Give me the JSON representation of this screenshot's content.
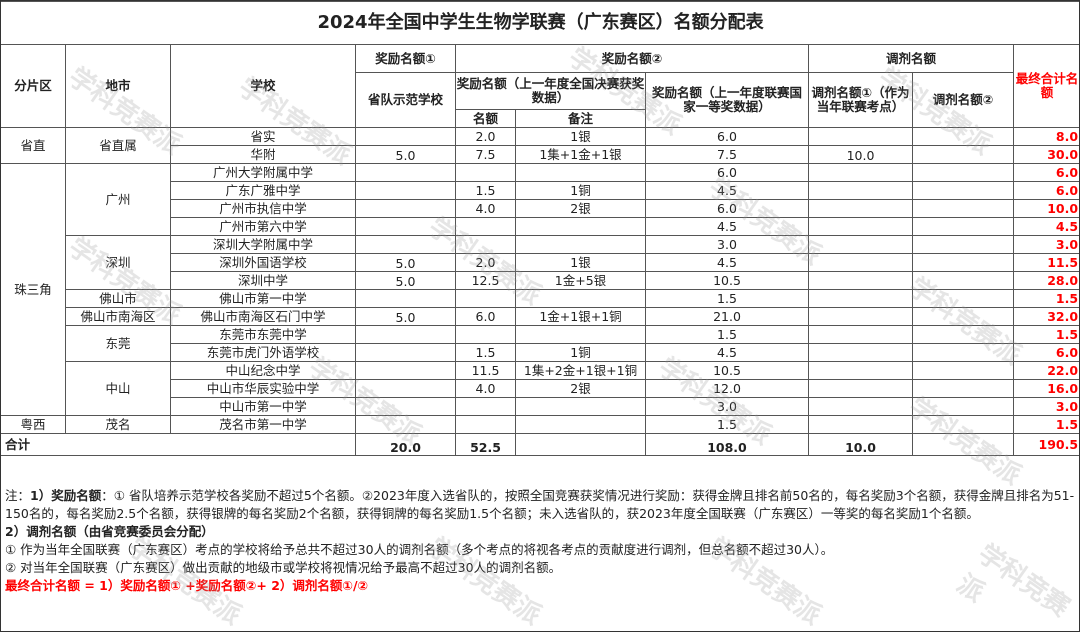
{
  "title": "2024年全国中学生生物学联赛（广东赛区）名额分配表",
  "headers": {
    "region": "分片区",
    "city": "地市",
    "school": "学校",
    "award1": "奖励名额①",
    "award1_sub": "省队示范学校",
    "award2": "奖励名额②",
    "award2_national": "奖励名额（上一年度全国决赛获奖数据）",
    "award2_count": "名额",
    "award2_note": "备注",
    "award2_league": "奖励名额（上一年度联赛国家一等奖数据）",
    "adjust": "调剂名额",
    "adjust1": "调剂名额①（作为当年联赛考点）",
    "adjust2": "调剂名额②",
    "final": "最终合计名额"
  },
  "rows": [
    {
      "region": "省直",
      "region_span": 2,
      "city": "省直属",
      "city_span": 2,
      "school": "省实",
      "award1": "",
      "count": "2.0",
      "note": "1银",
      "league": "6.0",
      "adj1": "",
      "adj2": "",
      "final": "8.0"
    },
    {
      "school": "华附",
      "award1": "5.0",
      "count": "7.5",
      "note": "1集+1金+1银",
      "league": "7.5",
      "adj1": "10.0",
      "adj2": "",
      "final": "30.0"
    },
    {
      "region": "珠三角",
      "region_span": 14,
      "city": "广州",
      "city_span": 4,
      "school": "广州大学附属中学",
      "award1": "",
      "count": "",
      "note": "",
      "league": "6.0",
      "adj1": "",
      "adj2": "",
      "final": "6.0"
    },
    {
      "school": "广东广雅中学",
      "award1": "",
      "count": "1.5",
      "note": "1铜",
      "league": "4.5",
      "adj1": "",
      "adj2": "",
      "final": "6.0"
    },
    {
      "school": "广州市执信中学",
      "award1": "",
      "count": "4.0",
      "note": "2银",
      "league": "6.0",
      "adj1": "",
      "adj2": "",
      "final": "10.0"
    },
    {
      "school": "广州市第六中学",
      "award1": "",
      "count": "",
      "note": "",
      "league": "4.5",
      "adj1": "",
      "adj2": "",
      "final": "4.5"
    },
    {
      "city": "深圳",
      "city_span": 3,
      "school": "深圳大学附属中学",
      "award1": "",
      "count": "",
      "note": "",
      "league": "3.0",
      "adj1": "",
      "adj2": "",
      "final": "3.0"
    },
    {
      "school": "深圳外国语学校",
      "award1": "5.0",
      "count": "2.0",
      "note": "1银",
      "league": "4.5",
      "adj1": "",
      "adj2": "",
      "final": "11.5"
    },
    {
      "school": "深圳中学",
      "award1": "5.0",
      "count": "12.5",
      "note": "1金+5银",
      "league": "10.5",
      "adj1": "",
      "adj2": "",
      "final": "28.0"
    },
    {
      "city": "佛山市",
      "city_span": 1,
      "school": "佛山市第一中学",
      "award1": "",
      "count": "",
      "note": "",
      "league": "1.5",
      "adj1": "",
      "adj2": "",
      "final": "1.5"
    },
    {
      "city": "佛山市南海区",
      "city_span": 1,
      "school": "佛山市南海区石门中学",
      "award1": "5.0",
      "count": "6.0",
      "note": "1金+1银+1铜",
      "league": "21.0",
      "adj1": "",
      "adj2": "",
      "final": "32.0"
    },
    {
      "city": "东莞",
      "city_span": 2,
      "school": "东莞市东莞中学",
      "award1": "",
      "count": "",
      "note": "",
      "league": "1.5",
      "adj1": "",
      "adj2": "",
      "final": "1.5"
    },
    {
      "school": "东莞市虎门外语学校",
      "award1": "",
      "count": "1.5",
      "note": "1铜",
      "league": "4.5",
      "adj1": "",
      "adj2": "",
      "final": "6.0"
    },
    {
      "city": "中山",
      "city_span": 3,
      "school": "中山纪念中学",
      "award1": "",
      "count": "11.5",
      "note": "1集+2金+1银+1铜",
      "league": "10.5",
      "adj1": "",
      "adj2": "",
      "final": "22.0"
    },
    {
      "school": "中山市华辰实验中学",
      "award1": "",
      "count": "4.0",
      "note": "2银",
      "league": "12.0",
      "adj1": "",
      "adj2": "",
      "final": "16.0"
    },
    {
      "school": "中山市第一中学",
      "award1": "",
      "count": "",
      "note": "",
      "league": "3.0",
      "adj1": "",
      "adj2": "",
      "final": "3.0"
    },
    {
      "region": "粤西",
      "region_span": 1,
      "city": "茂名",
      "city_span": 1,
      "school": "茂名市第一中学",
      "award1": "",
      "count": "",
      "note": "",
      "league": "1.5",
      "adj1": "",
      "adj2": "",
      "final": "1.5"
    }
  ],
  "total": {
    "label": "合计",
    "award1": "20.0",
    "count": "52.5",
    "league": "108.0",
    "adj1": "10.0",
    "final": "190.5"
  },
  "notes": {
    "n1_prefix": "注：",
    "n1_head": "1）奖励名额",
    "n1_text": "：① 省队培养示范学校各奖励不超过5个名额。②2023年度入选省队的，按照全国竞赛获奖情况进行奖励：获得金牌且排名前50名的，每名奖励3个名额，获得金牌且排名为51-150名的，每名奖励2.5个名额，获得银牌的每名奖励2个名额，获得铜牌的每名奖励1.5个名额；未入选省队的，获2023年度全国联赛（广东赛区）一等奖的每名奖励1个名额。",
    "n2_head": "2）调剂名额（由省竞赛委员会分配）",
    "n2_1": "① 作为当年全国联赛（广东赛区）考点的学校将给予总共不超过30人的调剂名额（多个考点的将视各考点的贡献度进行调剂，但总名额不超过30人）。",
    "n2_2": "② 对当年全国联赛（广东赛区）做出贡献的地级市或学校将视情况给予最高不超过30人的调剂名额。",
    "formula": "最终合计名额 = 1）奖励名额① +奖励名额②+ 2）调剂名额①/②"
  },
  "watermark": "学科竞赛派",
  "colors": {
    "final": "#ff0000",
    "border": "#555555"
  }
}
